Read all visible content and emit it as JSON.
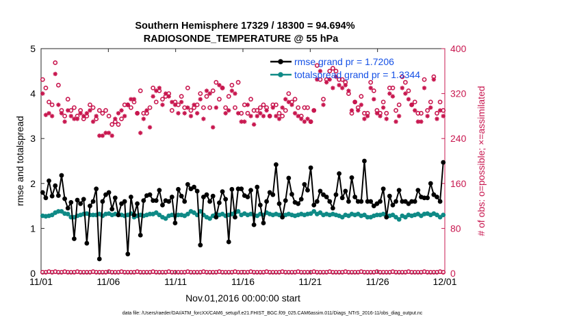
{
  "chart_data": {
    "type": "line",
    "title_line1": "Southern Hemisphere 17329 / 18300 = 94.694%",
    "title_line2": "RADIOSONDE_TEMPERATURE @ 55 hPa",
    "xlabel": "Nov.01,2016 00:00:00 start",
    "ylabel_left": "rmse and totalspread",
    "ylabel_right": "# of obs: o=possible; ×=assimilated",
    "footer": "data file: /Users/raeder/DAI/ATM_forcXX/CAM6_setup/f.e21.FHIST_BGC.f09_025.CAM6assim.011/Diags_NTrS_2016-11/obs_diag_output.nc",
    "x_ticks": [
      "11/01",
      "11/06",
      "11/11",
      "11/16",
      "11/21",
      "11/26",
      "12/01"
    ],
    "x_range_days": [
      0,
      30
    ],
    "ylim_left": [
      0,
      5
    ],
    "yticks_left": [
      "0",
      "1",
      "2",
      "3",
      "4",
      "5"
    ],
    "ylim_right": [
      0,
      400
    ],
    "yticks_right": [
      "0",
      "80",
      "160",
      "240",
      "320",
      "400"
    ],
    "colors": {
      "rmse": "#000000",
      "totalspread": "#0f8a86",
      "obs": "#c8174f",
      "legend_text": "#1450e6"
    },
    "legend": [
      {
        "label": "rmse grand pr = 1.7206",
        "series": "rmse"
      },
      {
        "label": "totalspread grand pr = 1.3344",
        "series": "totalspread"
      }
    ],
    "series": [
      {
        "name": "rmse",
        "axis": "left",
        "values": [
          1.8,
          1.68,
          2.06,
          1.72,
          1.95,
          1.73,
          2.18,
          1.66,
          1.45,
          1.58,
          0.77,
          1.63,
          1.55,
          1.65,
          0.67,
          1.5,
          1.6,
          1.88,
          0.32,
          1.6,
          1.75,
          1.8,
          1.43,
          1.68,
          1.3,
          1.55,
          1.6,
          0.43,
          1.7,
          1.3,
          1.55,
          0.85,
          1.62,
          1.73,
          1.75,
          1.62,
          1.62,
          1.85,
          1.52,
          1.62,
          1.6,
          1.7,
          1.12,
          1.87,
          1.72,
          1.6,
          1.98,
          1.88,
          1.92,
          1.83,
          0.63,
          1.7,
          1.75,
          1.6,
          1.72,
          1.25,
          1.57,
          1.82,
          1.65,
          0.7,
          1.87,
          1.25,
          1.88,
          1.88,
          1.73,
          1.7,
          1.85,
          1.08,
          1.92,
          1.52,
          1.12,
          1.6,
          1.8,
          1.75,
          2.42,
          1.55,
          1.25,
          1.62,
          2.12,
          1.76,
          1.58,
          1.55,
          1.65,
          1.98,
          1.85,
          2.35,
          1.52,
          1.6,
          1.83,
          1.75,
          1.7,
          1.6,
          1.45,
          1.75,
          2.22,
          1.68,
          1.83,
          1.6,
          2.13,
          1.7,
          1.6,
          1.6,
          2.5,
          1.6,
          1.6,
          1.5,
          1.55,
          1.6,
          1.88,
          1.25,
          1.72,
          1.52,
          1.6,
          1.85,
          1.6,
          1.6,
          1.55,
          1.6,
          1.6,
          1.85,
          1.7,
          1.68,
          1.68,
          2.0,
          1.75,
          1.7,
          1.6,
          2.47
        ]
      },
      {
        "name": "totalspread",
        "axis": "left",
        "values": [
          1.28,
          1.27,
          1.28,
          1.3,
          1.35,
          1.38,
          1.38,
          1.33,
          1.32,
          1.25,
          1.25,
          1.28,
          1.3,
          1.32,
          1.33,
          1.3,
          1.3,
          1.3,
          1.32,
          1.28,
          1.32,
          1.33,
          1.3,
          1.32,
          1.32,
          1.3,
          1.28,
          1.3,
          1.33,
          1.25,
          1.28,
          1.3,
          1.28,
          1.3,
          1.32,
          1.32,
          1.35,
          1.3,
          1.25,
          1.22,
          1.28,
          1.3,
          1.28,
          1.3,
          1.3,
          1.28,
          1.32,
          1.38,
          1.35,
          1.3,
          1.38,
          1.3,
          1.25,
          1.22,
          1.28,
          1.32,
          1.3,
          1.32,
          1.28,
          1.3,
          1.32,
          1.35,
          1.38,
          1.3,
          1.33,
          1.3,
          1.32,
          1.3,
          1.28,
          1.32,
          1.3,
          1.35,
          1.32,
          1.3,
          1.32,
          1.3,
          1.28,
          1.3,
          1.32,
          1.3,
          1.28,
          1.3,
          1.32,
          1.3,
          1.32,
          1.33,
          1.38,
          1.32,
          1.35,
          1.3,
          1.32,
          1.3,
          1.32,
          1.3,
          1.28,
          1.25,
          1.3,
          1.28,
          1.32,
          1.3,
          1.32,
          1.28,
          1.3,
          1.25,
          1.25,
          1.28,
          1.3,
          1.3,
          1.32,
          1.28,
          1.28,
          1.3,
          1.25,
          1.2,
          1.28,
          1.25,
          1.3,
          1.28,
          1.3,
          1.32,
          1.28,
          1.32,
          1.33,
          1.3,
          1.33,
          1.3,
          1.25,
          1.3
        ]
      },
      {
        "name": "obs_possible",
        "axis": "right",
        "values": [
          345,
          330,
          305,
          300,
          375,
          335,
          290,
          280,
          310,
          290,
          295,
          280,
          290,
          275,
          280,
          300,
          295,
          275,
          290,
          285,
          290,
          280,
          265,
          270,
          265,
          275,
          300,
          300,
          295,
          305,
          285,
          325,
          285,
          285,
          295,
          330,
          305,
          325,
          310,
          315,
          320,
          290,
          305,
          300,
          315,
          295,
          330,
          290,
          295,
          300,
          320,
          295,
          315,
          295,
          325,
          340,
          310,
          330,
          295,
          315,
          335,
          295,
          340,
          285,
          300,
          285,
          310,
          290,
          290,
          295,
          300,
          295,
          280,
          300,
          300,
          285,
          280,
          290,
          320,
          305,
          310,
          295,
          280,
          295,
          295,
          270,
          290,
          370,
          345,
          310,
          345,
          360,
          365,
          360,
          345,
          345,
          340,
          320,
          285,
          305,
          295,
          315,
          285,
          285,
          340,
          325,
          290,
          285,
          305,
          285,
          330,
          330,
          290,
          300,
          350,
          340,
          325,
          300,
          305,
          285,
          285,
          345,
          290,
          305,
          350,
          285,
          305,
          290
        ]
      },
      {
        "name": "obs_assimilated",
        "axis": "right",
        "values": [
          320,
          282,
          285,
          280,
          355,
          300,
          285,
          270,
          290,
          280,
          275,
          275,
          285,
          280,
          285,
          290,
          270,
          280,
          245,
          245,
          250,
          250,
          245,
          275,
          285,
          290,
          280,
          300,
          310,
          310,
          285,
          250,
          275,
          290,
          260,
          315,
          325,
          330,
          300,
          320,
          315,
          305,
          300,
          285,
          305,
          285,
          295,
          280,
          300,
          285,
          310,
          275,
          325,
          320,
          260,
          295,
          335,
          330,
          285,
          290,
          325,
          320,
          285,
          270,
          270,
          300,
          280,
          265,
          280,
          285,
          280,
          290,
          280,
          295,
          280,
          275,
          295,
          310,
          305,
          300,
          285,
          280,
          275,
          270,
          275,
          270,
          290,
          345,
          360,
          300,
          340,
          345,
          330,
          350,
          335,
          330,
          335,
          325,
          290,
          305,
          290,
          300,
          275,
          280,
          330,
          310,
          285,
          280,
          295,
          275,
          320,
          315,
          270,
          280,
          330,
          320,
          310,
          300,
          290,
          270,
          270,
          330,
          280,
          295,
          345,
          275,
          290,
          280
        ]
      },
      {
        "name": "obs_zero_possible",
        "axis": "right",
        "values": [
          2,
          2,
          3,
          2,
          3,
          2,
          2,
          3,
          2,
          2,
          2,
          3,
          2,
          2,
          2,
          2,
          3,
          2,
          2,
          2,
          2,
          3,
          2,
          2,
          2,
          3,
          2,
          2,
          2,
          2,
          3,
          2,
          2,
          2,
          2,
          3,
          2,
          2,
          2,
          2,
          3,
          2,
          2,
          2,
          2,
          2,
          3,
          2,
          2,
          2,
          2,
          3,
          2,
          2,
          2,
          2,
          3,
          2,
          2,
          2,
          2,
          3,
          2,
          2,
          2,
          2,
          3,
          2,
          2,
          2,
          2,
          3,
          2,
          2,
          2,
          2,
          3,
          2,
          2,
          2,
          2,
          3,
          2,
          2,
          2,
          2,
          3,
          2,
          2,
          2,
          2,
          3,
          2,
          2,
          2,
          2,
          3,
          2,
          2,
          2,
          2,
          3,
          2,
          2,
          2,
          2,
          3,
          2,
          2,
          2,
          2,
          3,
          2,
          2,
          2,
          2,
          3,
          2,
          2,
          2,
          2,
          3,
          2,
          2,
          2,
          2,
          3,
          2
        ]
      }
    ]
  }
}
